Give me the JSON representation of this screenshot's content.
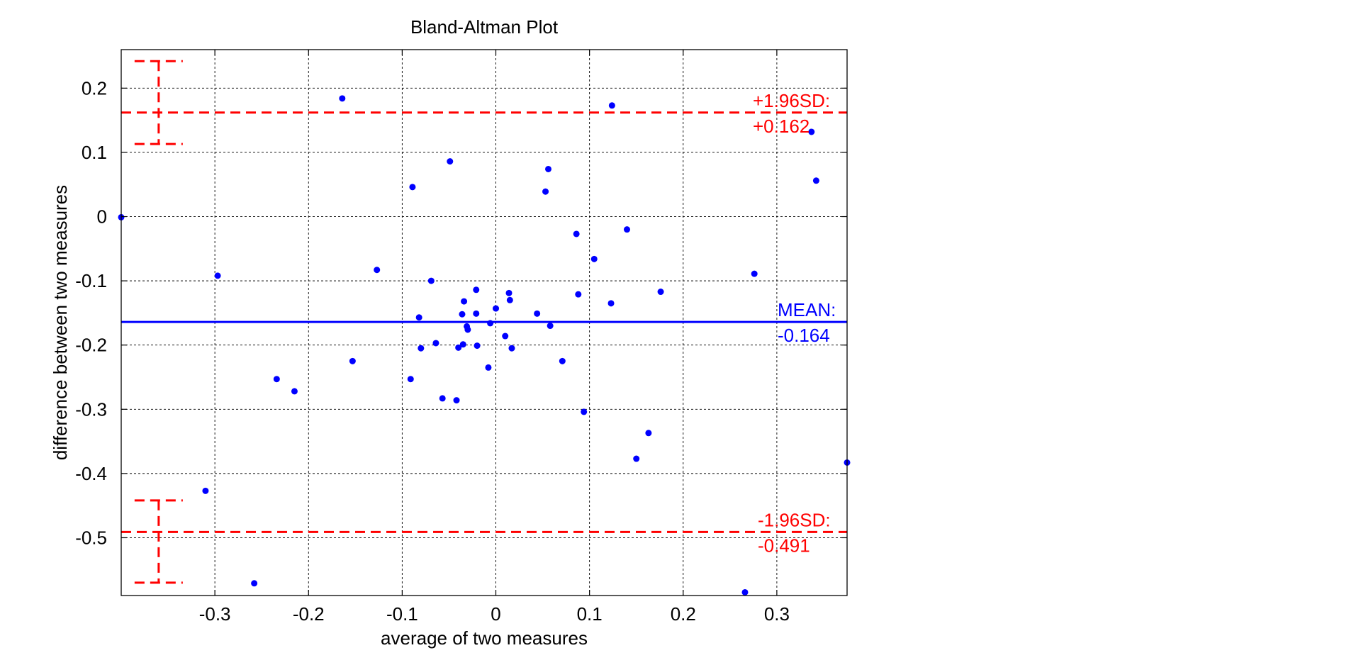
{
  "chart_data": {
    "type": "scatter",
    "title": "Bland-Altman Plot",
    "xlabel": "average of two measures",
    "ylabel": "difference between two measures",
    "xlim": [
      -0.4,
      0.375
    ],
    "ylim": [
      -0.59,
      0.26
    ],
    "grid": true,
    "xticks": [
      -0.3,
      -0.2,
      -0.1,
      0,
      0.1,
      0.2,
      0.3
    ],
    "xtick_labels": [
      "-0.3",
      "-0.2",
      "-0.1",
      "0",
      "0.1",
      "0.2",
      "0.3"
    ],
    "yticks": [
      0.2,
      0.1,
      0,
      -0.1,
      -0.2,
      -0.3,
      -0.4,
      -0.5
    ],
    "ytick_labels": [
      "0.2",
      "0.1",
      "0",
      "-0.1",
      "-0.2",
      "-0.3",
      "-0.4",
      "-0.5"
    ],
    "point_color": "#0000ff",
    "mean": {
      "value": -0.164,
      "color": "#0000ff",
      "label_line1": "MEAN:",
      "label_line2": "-0.164"
    },
    "upper_limit": {
      "value": 0.162,
      "ci": [
        0.113,
        0.242
      ],
      "color": "#ff0000",
      "label_line1": "+1.96SD:",
      "label_line2": "+0.162"
    },
    "lower_limit": {
      "value": -0.491,
      "ci": [
        -0.57,
        -0.442
      ],
      "color": "#ff0000",
      "label_line1": "-1.96SD:",
      "label_line2": "-0.491"
    },
    "points": [
      {
        "x": -0.4,
        "y": -0.001
      },
      {
        "x": -0.297,
        "y": -0.092
      },
      {
        "x": -0.31,
        "y": -0.427
      },
      {
        "x": -0.258,
        "y": -0.571
      },
      {
        "x": -0.234,
        "y": -0.253
      },
      {
        "x": -0.215,
        "y": -0.272
      },
      {
        "x": -0.164,
        "y": 0.184
      },
      {
        "x": -0.153,
        "y": -0.225
      },
      {
        "x": -0.127,
        "y": -0.083
      },
      {
        "x": -0.089,
        "y": 0.046
      },
      {
        "x": -0.091,
        "y": -0.253
      },
      {
        "x": -0.082,
        "y": -0.157
      },
      {
        "x": -0.08,
        "y": -0.205
      },
      {
        "x": -0.069,
        "y": -0.1
      },
      {
        "x": -0.064,
        "y": -0.197
      },
      {
        "x": -0.057,
        "y": -0.283
      },
      {
        "x": -0.049,
        "y": 0.086
      },
      {
        "x": -0.042,
        "y": -0.286
      },
      {
        "x": -0.04,
        "y": -0.204
      },
      {
        "x": -0.036,
        "y": -0.152
      },
      {
        "x": -0.035,
        "y": -0.199
      },
      {
        "x": -0.034,
        "y": -0.132
      },
      {
        "x": -0.031,
        "y": -0.171
      },
      {
        "x": -0.03,
        "y": -0.176
      },
      {
        "x": -0.021,
        "y": -0.114
      },
      {
        "x": -0.021,
        "y": -0.151
      },
      {
        "x": -0.02,
        "y": -0.201
      },
      {
        "x": -0.008,
        "y": -0.235
      },
      {
        "x": -0.006,
        "y": -0.166
      },
      {
        "x": 0.0,
        "y": -0.143
      },
      {
        "x": 0.01,
        "y": -0.186
      },
      {
        "x": 0.014,
        "y": -0.119
      },
      {
        "x": 0.015,
        "y": -0.13
      },
      {
        "x": 0.017,
        "y": -0.205
      },
      {
        "x": 0.044,
        "y": -0.151
      },
      {
        "x": 0.053,
        "y": 0.039
      },
      {
        "x": 0.056,
        "y": 0.074
      },
      {
        "x": 0.058,
        "y": -0.17
      },
      {
        "x": 0.071,
        "y": -0.225
      },
      {
        "x": 0.086,
        "y": -0.027
      },
      {
        "x": 0.088,
        "y": -0.121
      },
      {
        "x": 0.094,
        "y": -0.304
      },
      {
        "x": 0.105,
        "y": -0.066
      },
      {
        "x": 0.123,
        "y": -0.135
      },
      {
        "x": 0.124,
        "y": 0.173
      },
      {
        "x": 0.14,
        "y": -0.02
      },
      {
        "x": 0.15,
        "y": -0.377
      },
      {
        "x": 0.163,
        "y": -0.337
      },
      {
        "x": 0.176,
        "y": -0.117
      },
      {
        "x": 0.266,
        "y": -0.585
      },
      {
        "x": 0.276,
        "y": -0.089
      },
      {
        "x": 0.337,
        "y": 0.132
      },
      {
        "x": 0.342,
        "y": 0.056
      },
      {
        "x": 0.375,
        "y": -0.383
      }
    ]
  }
}
